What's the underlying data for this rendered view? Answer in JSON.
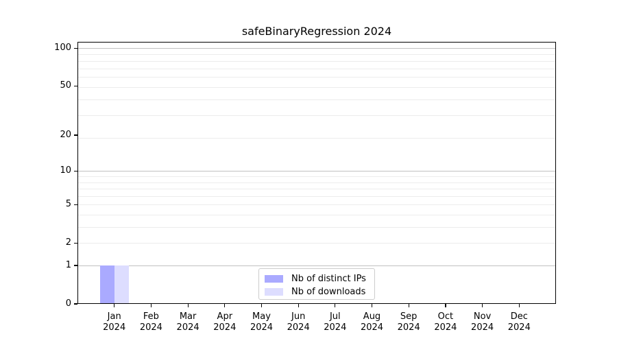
{
  "figure": {
    "title": "safeBinaryRegression 2024"
  },
  "chart_data": {
    "type": "bar",
    "title": "safeBinaryRegression 2024",
    "x_categories": [
      "Jan",
      "Feb",
      "Mar",
      "Apr",
      "May",
      "Jun",
      "Jul",
      "Aug",
      "Sep",
      "Oct",
      "Nov",
      "Dec"
    ],
    "x_year": "2024",
    "series": [
      {
        "name": "Nb of distinct IPs",
        "color": "#aaaaff",
        "values": [
          1,
          0,
          0,
          0,
          0,
          0,
          0,
          0,
          0,
          0,
          0,
          0
        ]
      },
      {
        "name": "Nb of downloads",
        "color": "#ddddff",
        "values": [
          1,
          0,
          0,
          0,
          0,
          0,
          0,
          0,
          0,
          0,
          0,
          0
        ]
      }
    ],
    "y_axis": {
      "scale": "log10(1+x)",
      "ticks": [
        0,
        1,
        2,
        5,
        10,
        20,
        50,
        100
      ],
      "major_gridlines": [
        1,
        10,
        100
      ],
      "minor_gridlines": [
        2,
        3,
        4,
        5,
        6,
        7,
        8,
        9,
        19,
        29,
        39,
        49,
        59,
        69,
        79,
        89
      ],
      "ylim": [
        0,
        112
      ]
    },
    "legend": {
      "position": "lower center",
      "entries": [
        "Nb of distinct IPs",
        "Nb of downloads"
      ]
    },
    "grid": true
  },
  "colors": {
    "background": "#ffffff",
    "grid_major": "#c0c0c0",
    "grid_minor": "#ececec",
    "spine": "#000000",
    "text": "#000000",
    "legend_border": "#cccccc",
    "bar_distinct_ips": "#aaaaff",
    "bar_downloads": "#ddddff"
  }
}
